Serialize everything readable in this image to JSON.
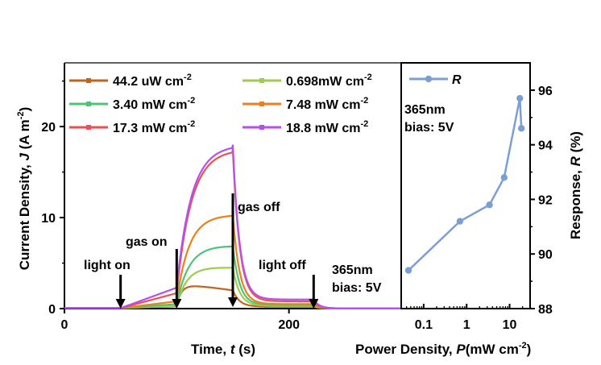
{
  "chart_data": [
    {
      "type": "line",
      "xlabel_main": "Time, ",
      "xlabel_var": "t",
      "xlabel_unit": " (s)",
      "ylabel_main": "Current Density, ",
      "ylabel_var": "J",
      "ylabel_unit": " (A m",
      "ylabel_exp": "-2",
      "ylabel_close": ")",
      "xlim": [
        0,
        300
      ],
      "ylim": [
        0,
        27
      ],
      "xticks": [
        0,
        200
      ],
      "yticks": [
        0,
        10,
        20
      ],
      "x_events": {
        "light_on": 50,
        "gas_on": 100,
        "gas_off": 150,
        "light_off": 222
      },
      "series": [
        {
          "name": "44.2 uW cm",
          "exp": "-2",
          "color": "#c0651c",
          "dark": 0.05,
          "light": 0.25,
          "peak": 2.6,
          "end": 2.0,
          "decay": 0.2,
          "gas_tau": 4
        },
        {
          "name": "0.698mW cm",
          "exp": "-2",
          "color": "#9ccc50",
          "dark": 0.05,
          "light": 0.3,
          "peak": 4.6,
          "end": 4.5,
          "decay": 0.3,
          "gas_tau": 9
        },
        {
          "name": "3.40 mW cm",
          "exp": "-2",
          "color": "#4cc476",
          "dark": 0.05,
          "light": 0.5,
          "peak": 7.0,
          "end": 6.9,
          "decay": 0.4,
          "gas_tau": 11
        },
        {
          "name": "7.48 mW cm",
          "exp": "-2",
          "color": "#ee7f1a",
          "dark": 0.05,
          "light": 0.8,
          "peak": 10.3,
          "end": 10.3,
          "decay": 0.5,
          "gas_tau": 11
        },
        {
          "name": "17.3 mW cm",
          "exp": "-2",
          "color": "#f04e56",
          "dark": 0.05,
          "light": 1.7,
          "peak": 17.5,
          "end": 17.5,
          "decay": 0.8,
          "gas_tau": 13
        },
        {
          "name": "18.8 mW cm",
          "exp": "-2",
          "color": "#b64ff0",
          "dark": 0.05,
          "light": 2.3,
          "peak": 18.0,
          "end": 18.0,
          "decay": 1.0,
          "gas_tau": 13
        }
      ],
      "annotations": {
        "light_on": "light on",
        "gas_on": "gas on",
        "gas_off": "gas off",
        "light_off": "light off",
        "wavelength": "365nm",
        "bias": "bias: 5V"
      }
    },
    {
      "type": "line",
      "xscale": "log",
      "xlabel_main": "Power Density, ",
      "xlabel_var": "P",
      "xlabel_unit": "(mW cm",
      "xlabel_exp": "-2",
      "xlabel_close": ")",
      "ylabel_main": "Response, ",
      "ylabel_var": "R",
      "ylabel_unit": " (%)",
      "xlim": [
        0.03,
        30
      ],
      "ylim": [
        88,
        97
      ],
      "xticks": [
        0.1,
        1,
        10
      ],
      "xtick_labels": [
        "0.1",
        "1",
        "10"
      ],
      "yticks": [
        88,
        90,
        92,
        94,
        96
      ],
      "series": [
        {
          "name": "R",
          "color": "#7b9fd4",
          "x": [
            0.0442,
            0.698,
            3.4,
            7.48,
            17.3,
            18.8
          ],
          "y": [
            89.4,
            91.2,
            91.8,
            92.8,
            95.7,
            94.6
          ]
        }
      ],
      "legend": "top-left",
      "annotations": {
        "wavelength": "365nm",
        "bias": "bias: 5V"
      }
    }
  ]
}
